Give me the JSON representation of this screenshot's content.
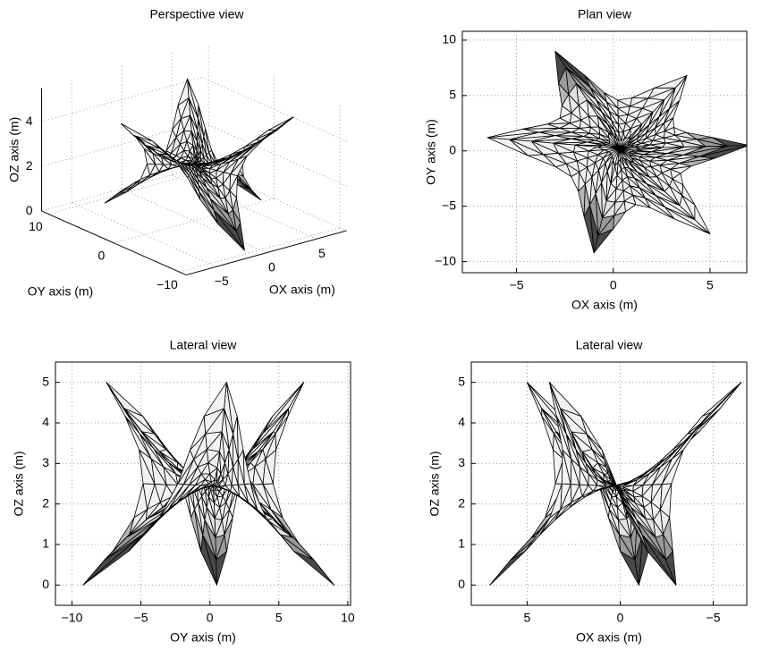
{
  "chart_data": [
    {
      "type": "mesh3d",
      "title": "Perspective view",
      "xlabel": "OX axis (m)",
      "ylabel": "OY axis (m)",
      "zlabel": "OZ axis (m)",
      "xlim": [
        -8,
        8
      ],
      "ylim": [
        -11,
        11
      ],
      "zlim": [
        0,
        5.5
      ],
      "xticks": [
        {
          "value": -5,
          "label": "−5"
        },
        0,
        5
      ],
      "yticks": [
        {
          "value": -10,
          "label": "−10"
        },
        0,
        10
      ],
      "zticks": [
        0,
        2,
        4
      ],
      "grid": true
    },
    {
      "type": "plan",
      "title": "Plan view",
      "xlabel": "OX axis (m)",
      "ylabel": "OY axis (m)",
      "xlim": [
        -7.8,
        6.9
      ],
      "ylim": [
        -11,
        10.8
      ],
      "xticks": [
        {
          "value": -5,
          "label": "−5"
        },
        0,
        5
      ],
      "yticks": [
        {
          "value": -10,
          "label": "−10"
        },
        {
          "value": -5,
          "label": "−5"
        },
        0,
        5,
        10
      ],
      "grid": true
    },
    {
      "type": "lateral-oy",
      "title": "Lateral view",
      "xlabel": "OY axis (m)",
      "ylabel": "OZ axis (m)",
      "xlim": [
        -11.2,
        10.2
      ],
      "ylim": [
        -0.5,
        5.5
      ],
      "xticks": [
        {
          "value": -10,
          "label": "−10"
        },
        {
          "value": -5,
          "label": "−5"
        },
        0,
        5,
        10
      ],
      "yticks": [
        0,
        1,
        2,
        3,
        4,
        5
      ],
      "grid": true
    },
    {
      "type": "lateral-ox",
      "title": "Lateral view",
      "xlabel": "OX axis (m)",
      "ylabel": "OZ axis (m)",
      "xlim": [
        8,
        -6.8
      ],
      "ylim": [
        -0.5,
        5.5
      ],
      "xticks": [
        5,
        0,
        {
          "value": -5,
          "label": "−5"
        }
      ],
      "yticks": [
        0,
        1,
        2,
        3,
        4,
        5
      ],
      "grid": true
    }
  ]
}
